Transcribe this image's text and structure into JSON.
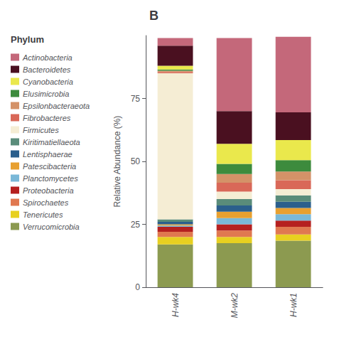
{
  "chart_data": {
    "type": "bar",
    "title": "B",
    "ylabel": "Relative Abundance (%)",
    "legend_title": "Phylum",
    "categories": [
      "H-wk4",
      "M-wk2",
      "H-wk1"
    ],
    "series": [
      {
        "name": "Verrucomicrobia",
        "color": "#8C9A50",
        "values": [
          17.0,
          17.5,
          18.5
        ]
      },
      {
        "name": "Tenericutes",
        "color": "#E8D020",
        "values": [
          3.0,
          2.5,
          2.5
        ]
      },
      {
        "name": "Spirochaetes",
        "color": "#E07850",
        "values": [
          2.0,
          2.5,
          3.0
        ]
      },
      {
        "name": "Proteobacteria",
        "color": "#B52020",
        "values": [
          2.0,
          2.5,
          2.5
        ]
      },
      {
        "name": "Planctomycetes",
        "color": "#7AB8D8",
        "values": [
          0.5,
          2.5,
          2.5
        ]
      },
      {
        "name": "Patescibacteria",
        "color": "#E8A030",
        "values": [
          0.5,
          2.5,
          2.5
        ]
      },
      {
        "name": "Lentisphaerae",
        "color": "#2B5F8C",
        "values": [
          1.0,
          2.5,
          2.5
        ]
      },
      {
        "name": "Kiritimatiellaeota",
        "color": "#5A8C7A",
        "values": [
          1.0,
          2.5,
          2.5
        ]
      },
      {
        "name": "Firmicutes",
        "color": "#F5EDD4",
        "values": [
          58.0,
          3.0,
          2.5
        ]
      },
      {
        "name": "Fibrobacteres",
        "color": "#D96858",
        "values": [
          0.5,
          3.5,
          3.5
        ]
      },
      {
        "name": "Epsilonbacteraeota",
        "color": "#D49268",
        "values": [
          0.5,
          3.5,
          3.5
        ]
      },
      {
        "name": "Elusimicrobia",
        "color": "#3D8B3D",
        "values": [
          0.5,
          4.0,
          4.5
        ]
      },
      {
        "name": "Cyanobacteria",
        "color": "#EAE84C",
        "values": [
          1.5,
          8.0,
          8.0
        ]
      },
      {
        "name": "Bacteroidetes",
        "color": "#4A1020",
        "values": [
          8.0,
          13.0,
          11.0
        ]
      },
      {
        "name": "Actinobacteria",
        "color": "#C4687A",
        "values": [
          3.0,
          29.0,
          30.0
        ]
      }
    ],
    "stacked": true,
    "ylim": [
      0,
      100
    ],
    "yticks": [
      0,
      25,
      50,
      75
    ],
    "grid": false,
    "legend": "left"
  }
}
